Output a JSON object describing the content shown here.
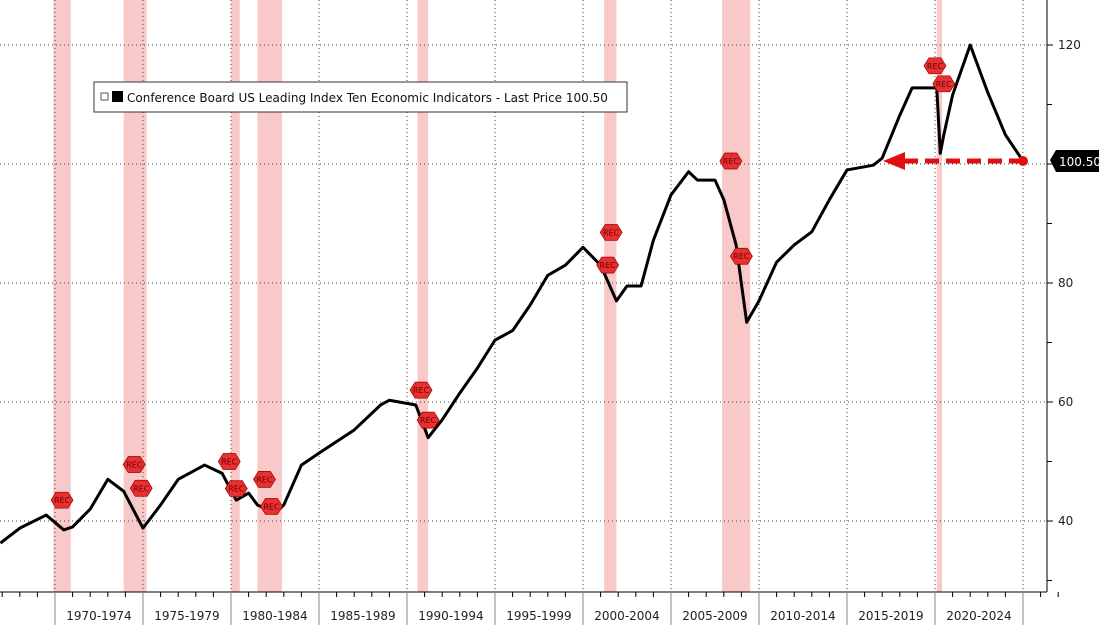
{
  "chart_data": {
    "type": "line",
    "title": "",
    "legend": {
      "label": "Conference Board US Leading Index Ten Economic Indicators - Last Price 100.50",
      "placement": "top-left"
    },
    "ylim": [
      28,
      130
    ],
    "xlim": [
      1966.9,
      2027.0
    ],
    "yticks": [
      40,
      60,
      80,
      100,
      120
    ],
    "ytick_labels": [
      "40",
      "60",
      "80",
      "",
      "120"
    ],
    "last_price_label": "100.50",
    "last_price": 100.5,
    "x_periods": [
      "1970-1974",
      "1975-1979",
      "1980-1984",
      "1985-1989",
      "1990-1994",
      "1995-1999",
      "2000-2004",
      "2005-2009",
      "2010-2014",
      "2015-2019",
      "2020-2024"
    ],
    "period_starts": [
      1970,
      1975,
      1980,
      1985,
      1990,
      1995,
      2000,
      2005,
      2010,
      2015,
      2020,
      2025
    ],
    "recessions": [
      [
        1969.9,
        1970.9
      ],
      [
        1973.9,
        1975.2
      ],
      [
        1980.0,
        1980.5
      ],
      [
        1981.5,
        1982.9
      ],
      [
        1990.6,
        1991.2
      ],
      [
        2001.2,
        2001.9
      ],
      [
        2007.9,
        2009.5
      ],
      [
        2020.1,
        2020.4
      ]
    ],
    "rec_label": "REC",
    "rec_markers": [
      [
        1970.4,
        43.5
      ],
      [
        1974.5,
        49.5
      ],
      [
        1974.9,
        45.5
      ],
      [
        1979.9,
        50
      ],
      [
        1980.3,
        51.5
      ],
      [
        1981.9,
        47
      ],
      [
        1982.3,
        48.5
      ],
      [
        1990.8,
        62
      ],
      [
        1991.2,
        63
      ],
      [
        2001.4,
        83
      ],
      [
        2001.6,
        88.5
      ],
      [
        2008.4,
        100.5
      ],
      [
        2009.0,
        84.5
      ],
      [
        2020.0,
        116.5
      ],
      [
        2020.5,
        116.5
      ]
    ],
    "series": [
      {
        "name": "Conference Board US Leading Index",
        "color": "#000000",
        "x": [
          1966.9,
          1968,
          1969.5,
          1970.5,
          1971,
          1972,
          1973,
          1973.9,
          1975,
          1976,
          1977,
          1978.5,
          1979.5,
          1980.3,
          1981,
          1981.5,
          1982.5,
          1983,
          1984,
          1985,
          1987,
          1988.5,
          1989,
          1990.5,
          1991.2,
          1992,
          1993,
          1994,
          1995,
          1996,
          1997,
          1998,
          1999,
          2000,
          2001,
          2001.9,
          2002.5,
          2003.3,
          2004,
          2005,
          2006,
          2006.5,
          2007.5,
          2008,
          2008.7,
          2009.3,
          2010,
          2011,
          2012,
          2013,
          2014,
          2015,
          2016.5,
          2017,
          2018,
          2018.7,
          2019.5,
          2020.1,
          2020.3,
          2020.5,
          2021,
          2022,
          2023,
          2024,
          2025
        ],
        "y": [
          36.3,
          38.8,
          41,
          38.5,
          39,
          42,
          47,
          45,
          38.8,
          42.7,
          47,
          49.4,
          48,
          43.5,
          44.7,
          42.7,
          41.3,
          42.7,
          49.4,
          51.4,
          55.3,
          59.5,
          60.3,
          59.5,
          54,
          57,
          61.5,
          65.7,
          70.4,
          72,
          76.3,
          81.3,
          83,
          86,
          83,
          77,
          79.5,
          79.5,
          87.2,
          94.8,
          98.7,
          97.3,
          97.3,
          94,
          86.4,
          73.4,
          77,
          83.5,
          86.4,
          88.6,
          94,
          99,
          99.8,
          101,
          108.2,
          112.8,
          112.8,
          112.8,
          101.8,
          104.9,
          111.6,
          120,
          112,
          104.9,
          100.5
        ]
      }
    ],
    "colors": {
      "recession": "#f9c9c9",
      "arrow": "#e01010",
      "rec_marker": "#e83030"
    }
  }
}
